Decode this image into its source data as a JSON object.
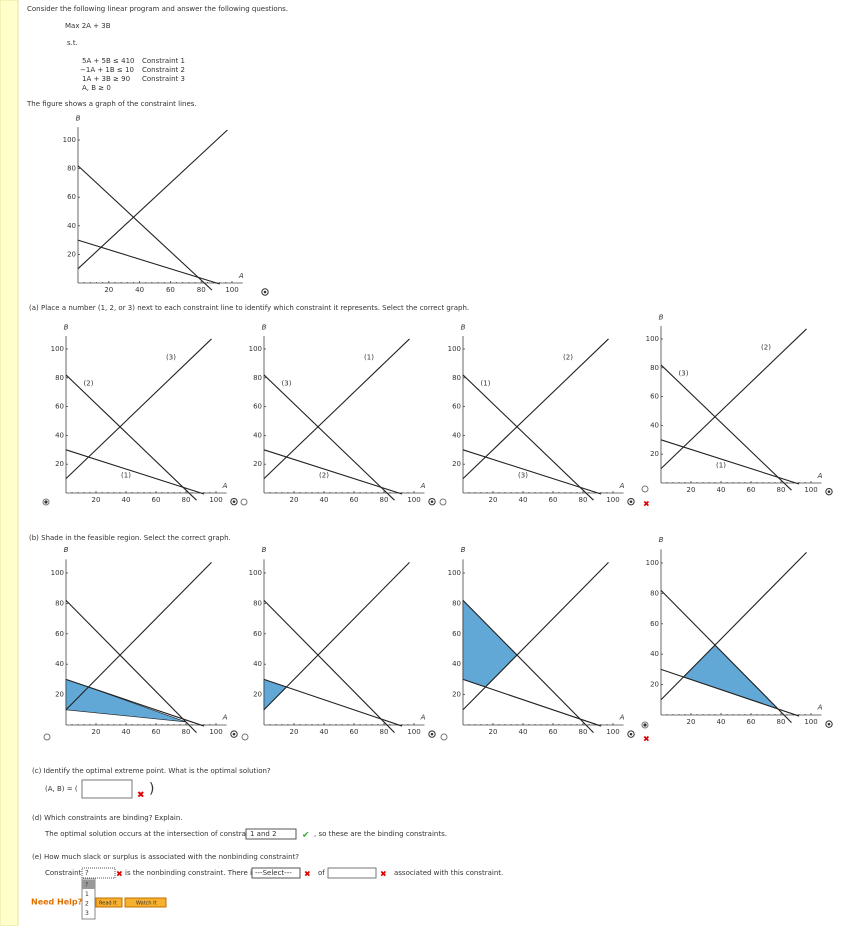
{
  "intro": "Consider the following linear program and answer the following questions.",
  "objective": "Max 2A + 3B",
  "st": "s.t.",
  "constraints": [
    {
      "expr": "5A + 5B ≤ 410",
      "name": "Constraint 1"
    },
    {
      "expr": "−1A + 1B ≤ 10",
      "name": "Constraint 2"
    },
    {
      "expr": "1A + 3B ≥ 90",
      "name": "Constraint 3"
    }
  ],
  "nonneg": "A, B ≥ 0",
  "figure_caption": "The figure shows a graph of the constraint lines.",
  "axes": {
    "x_label": "A",
    "y_label": "B",
    "ticks": [
      20,
      40,
      60,
      80,
      100
    ]
  },
  "part_a": {
    "prompt": "(a)  Place a number (1, 2, or 3) next to each constraint line to identify which constraint it represents. Select the correct graph.",
    "options": [
      {
        "line_labels": [
          "(2)",
          "(3)",
          "(1)"
        ],
        "selected": true
      },
      {
        "line_labels": [
          "(3)",
          "(1)",
          "(2)"
        ],
        "selected": false
      },
      {
        "line_labels": [
          "(1)",
          "(2)",
          "(3)"
        ],
        "selected": false
      },
      {
        "line_labels": [
          "(3)",
          "(2)",
          "(1)"
        ],
        "selected": false
      }
    ]
  },
  "part_b": {
    "prompt": "(b)  Shade in the feasible region. Select the correct graph.",
    "options": [
      {
        "selected": false
      },
      {
        "selected": false
      },
      {
        "selected": false
      },
      {
        "selected": true
      }
    ]
  },
  "part_c": {
    "prompt": "(c)  Identify the optimal extreme point. What is the optimal solution?",
    "lead": "(A, B) = (",
    "close": ")"
  },
  "part_d": {
    "prompt": "(d)  Which constraints are binding? Explain.",
    "before": "The optimal solution occurs at the intersection of constraints",
    "choice": "1 and 2",
    "after": ", so these are the binding constraints."
  },
  "part_e": {
    "prompt": "(e)  How much slack or surplus is associated with the nonbinding constraint?",
    "lead": "Constraint",
    "choice": "?",
    "mid": "is the nonbinding constraint. There is a",
    "select": "---Select---",
    "of": "of",
    "tail": "associated with this constraint.",
    "dropdown": [
      "?",
      "1",
      "2",
      "3"
    ]
  },
  "help": {
    "label": "Need Help?",
    "buttons": [
      "Read It",
      "Watch It"
    ]
  }
}
